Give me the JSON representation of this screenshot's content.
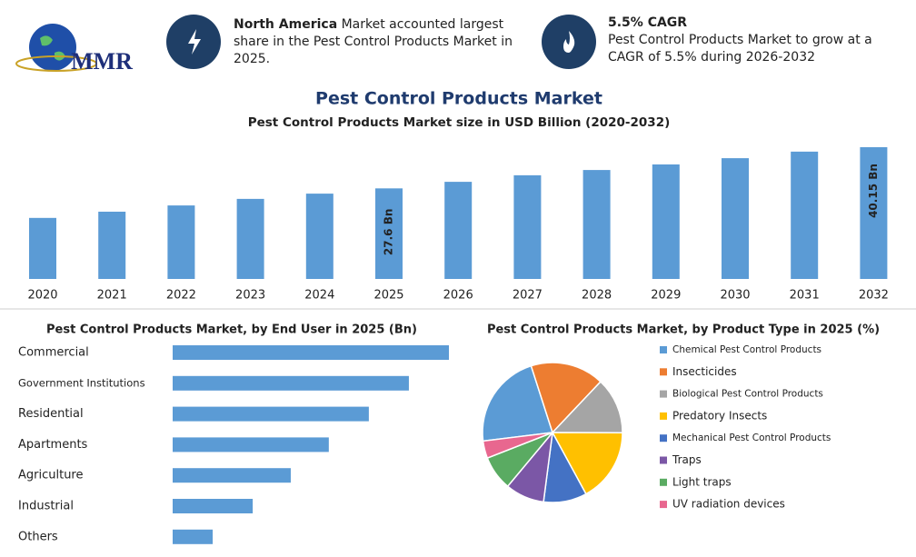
{
  "header": {
    "logo": "MMR",
    "info": [
      {
        "bold": "North America",
        "text": "Market accounted largest share in the Pest Control Products Market in 2025."
      },
      {
        "bold": "5.5% CAGR",
        "text": "Pest Control Products Market to grow at a CAGR of 5.5% during 2026-2032"
      }
    ]
  },
  "chart_data": [
    {
      "type": "bar",
      "title": "Pest Control Products Market",
      "subtitle": "Pest Control Products Market size in USD Billion (2020-2032)",
      "categories": [
        "2020",
        "2021",
        "2022",
        "2023",
        "2024",
        "2025",
        "2026",
        "2027",
        "2028",
        "2029",
        "2030",
        "2031",
        "2032"
      ],
      "values": [
        18.6,
        20.5,
        22.4,
        24.4,
        26.0,
        27.6,
        29.6,
        31.6,
        33.2,
        34.9,
        36.8,
        38.8,
        40.15
      ],
      "value_labels": [
        null,
        null,
        null,
        null,
        null,
        "27.6 Bn",
        null,
        null,
        null,
        null,
        null,
        null,
        "40.15 Bn"
      ],
      "color": "#5b9bd5"
    },
    {
      "type": "hbar",
      "title": "Pest Control Products Market, by End User in 2025 (Bn)",
      "categories": [
        "Commercial",
        "Government Institutions",
        "Residential",
        "Apartments",
        "Agriculture",
        "Industrial",
        "Others"
      ],
      "values": [
        6.9,
        5.9,
        4.9,
        3.9,
        2.95,
        2.0,
        1.0
      ],
      "color": "#5b9bd5"
    },
    {
      "type": "pie",
      "title": "Pest Control Products Market, by Product Type in 2025 (%)",
      "categories": [
        "Chemical Pest Control Products",
        "Insecticides",
        "Biological Pest Control Products",
        "Predatory Insects",
        "Mechanical Pest Control Products",
        "Traps",
        "Light traps",
        "UV radiation devices"
      ],
      "values": [
        22,
        17,
        13,
        17,
        10,
        9,
        8,
        4
      ],
      "colors": [
        "#5b9bd5",
        "#ed7d31",
        "#a5a5a5",
        "#ffc000",
        "#4472c4",
        "#7b57a6",
        "#5aab62",
        "#e8678f"
      ]
    }
  ]
}
